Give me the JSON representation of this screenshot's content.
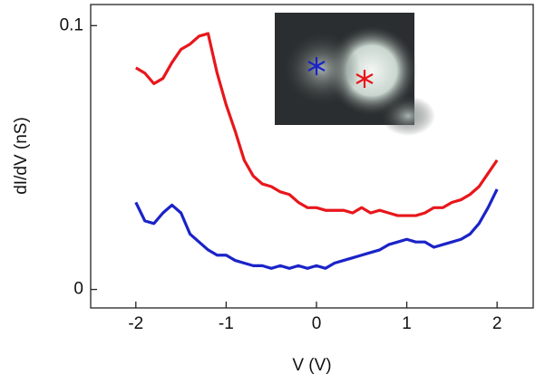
{
  "chart_data": {
    "type": "line",
    "x_label": "V (V)",
    "y_label": "dI/dV (nS)",
    "x": [
      -2,
      -1.9,
      -1.8,
      -1.7,
      -1.6,
      -1.5,
      -1.4,
      -1.3,
      -1.2,
      -1.1,
      -1,
      -0.9,
      -0.8,
      -0.7,
      -0.6,
      -0.5,
      -0.4,
      -0.3,
      -0.2,
      -0.1,
      0,
      0.1,
      0.2,
      0.3,
      0.4,
      0.5,
      0.6,
      0.7,
      0.8,
      0.9,
      1,
      1.1,
      1.2,
      1.3,
      1.4,
      1.5,
      1.6,
      1.7,
      1.8,
      1.9,
      2
    ],
    "series": [
      {
        "color": "#e8161b",
        "values": [
          0.084,
          0.082,
          0.078,
          0.08,
          0.086,
          0.091,
          0.093,
          0.096,
          0.097,
          0.082,
          0.07,
          0.06,
          0.049,
          0.043,
          0.04,
          0.039,
          0.037,
          0.036,
          0.033,
          0.031,
          0.031,
          0.03,
          0.03,
          0.03,
          0.029,
          0.031,
          0.029,
          0.03,
          0.029,
          0.028,
          0.028,
          0.028,
          0.029,
          0.031,
          0.031,
          0.033,
          0.034,
          0.036,
          0.039,
          0.044,
          0.049
        ]
      },
      {
        "color": "#1a23c8",
        "values": [
          0.033,
          0.026,
          0.025,
          0.029,
          0.032,
          0.029,
          0.021,
          0.018,
          0.015,
          0.013,
          0.013,
          0.011,
          0.01,
          0.009,
          0.009,
          0.008,
          0.009,
          0.008,
          0.009,
          0.008,
          0.009,
          0.008,
          0.01,
          0.011,
          0.012,
          0.013,
          0.014,
          0.015,
          0.017,
          0.018,
          0.019,
          0.018,
          0.018,
          0.016,
          0.017,
          0.018,
          0.019,
          0.021,
          0.025,
          0.031,
          0.038
        ]
      }
    ],
    "xlim": [
      -2.5,
      2.4
    ],
    "xticks": [
      -2,
      -1,
      0,
      1,
      2
    ],
    "ylim": [
      -0.007,
      0.108
    ],
    "yticks": [
      0,
      0.1
    ]
  }
}
